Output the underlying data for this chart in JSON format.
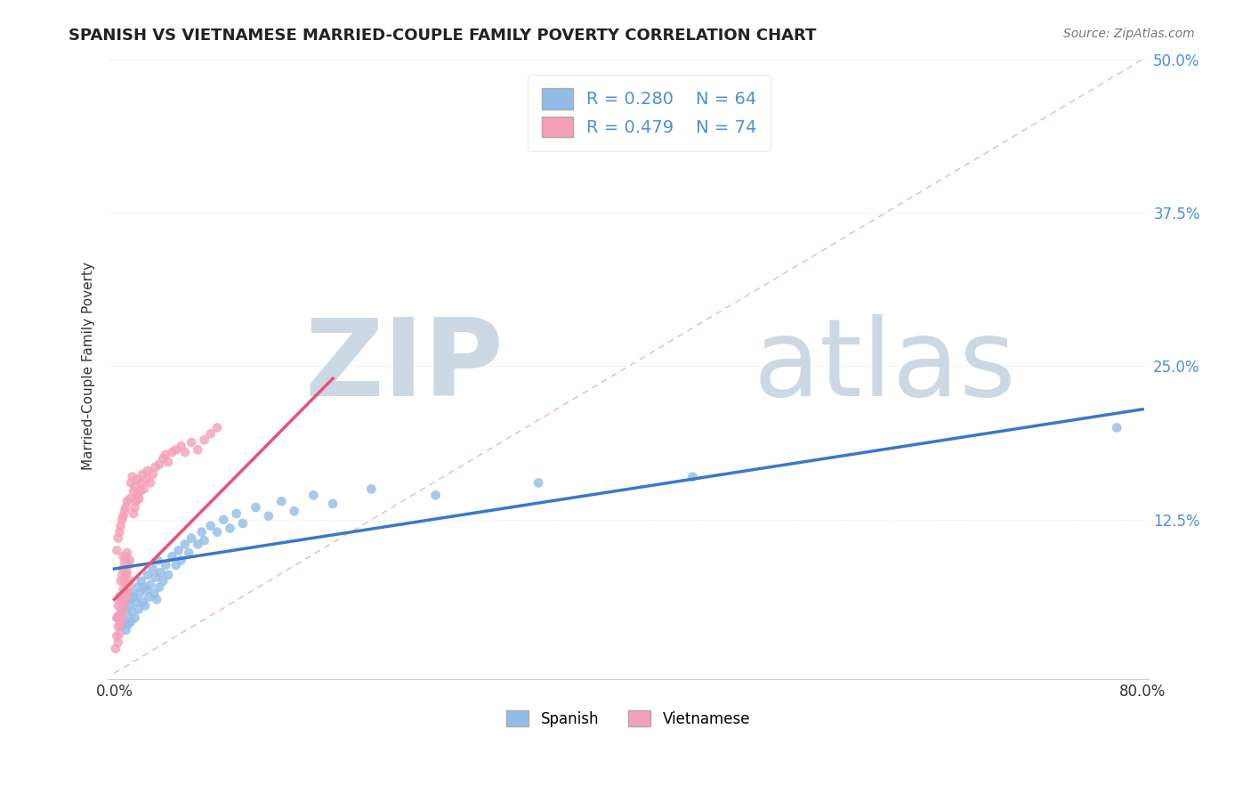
{
  "title": "SPANISH VS VIETNAMESE MARRIED-COUPLE FAMILY POVERTY CORRELATION CHART",
  "source": "Source: ZipAtlas.com",
  "ylabel": "Married-Couple Family Poverty",
  "xlim": [
    -0.005,
    0.805
  ],
  "ylim": [
    -0.005,
    0.505
  ],
  "xticks": [
    0.0,
    0.2,
    0.4,
    0.6,
    0.8
  ],
  "yticks": [
    0.0,
    0.125,
    0.25,
    0.375,
    0.5
  ],
  "yticklabels": [
    "",
    "12.5%",
    "25.0%",
    "37.5%",
    "50.0%"
  ],
  "spanish_color": "#92bce8",
  "vietnamese_color": "#f4a0b8",
  "spanish_R": 0.28,
  "spanish_N": 64,
  "vietnamese_R": 0.479,
  "vietnamese_N": 74,
  "watermark_zip": "ZIP",
  "watermark_atlas": "atlas",
  "watermark_color_zip": "#c8d8e8",
  "watermark_color_atlas": "#c8d8e8",
  "diagonal_color": "#e0c8c8",
  "spanish_line_color": "#3a78c9",
  "vietnamese_line_color": "#e8507a",
  "background_color": "#ffffff",
  "grid_color": "#e8e8e8",
  "tick_color": "#4a90d9",
  "legend_box_color": "#e8e8e8",
  "spanish_points": [
    [
      0.003,
      0.045
    ],
    [
      0.005,
      0.038
    ],
    [
      0.006,
      0.052
    ],
    [
      0.007,
      0.042
    ],
    [
      0.008,
      0.055
    ],
    [
      0.009,
      0.035
    ],
    [
      0.01,
      0.048
    ],
    [
      0.01,
      0.06
    ],
    [
      0.011,
      0.04
    ],
    [
      0.012,
      0.055
    ],
    [
      0.013,
      0.042
    ],
    [
      0.013,
      0.065
    ],
    [
      0.014,
      0.05
    ],
    [
      0.015,
      0.062
    ],
    [
      0.016,
      0.045
    ],
    [
      0.017,
      0.058
    ],
    [
      0.018,
      0.07
    ],
    [
      0.019,
      0.052
    ],
    [
      0.02,
      0.065
    ],
    [
      0.021,
      0.075
    ],
    [
      0.022,
      0.058
    ],
    [
      0.023,
      0.07
    ],
    [
      0.024,
      0.055
    ],
    [
      0.025,
      0.068
    ],
    [
      0.026,
      0.08
    ],
    [
      0.027,
      0.062
    ],
    [
      0.028,
      0.072
    ],
    [
      0.03,
      0.085
    ],
    [
      0.031,
      0.065
    ],
    [
      0.032,
      0.078
    ],
    [
      0.033,
      0.06
    ],
    [
      0.034,
      0.092
    ],
    [
      0.035,
      0.07
    ],
    [
      0.036,
      0.082
    ],
    [
      0.038,
      0.075
    ],
    [
      0.04,
      0.088
    ],
    [
      0.042,
      0.08
    ],
    [
      0.045,
      0.095
    ],
    [
      0.048,
      0.088
    ],
    [
      0.05,
      0.1
    ],
    [
      0.052,
      0.092
    ],
    [
      0.055,
      0.105
    ],
    [
      0.058,
      0.098
    ],
    [
      0.06,
      0.11
    ],
    [
      0.065,
      0.105
    ],
    [
      0.068,
      0.115
    ],
    [
      0.07,
      0.108
    ],
    [
      0.075,
      0.12
    ],
    [
      0.08,
      0.115
    ],
    [
      0.085,
      0.125
    ],
    [
      0.09,
      0.118
    ],
    [
      0.095,
      0.13
    ],
    [
      0.1,
      0.122
    ],
    [
      0.11,
      0.135
    ],
    [
      0.12,
      0.128
    ],
    [
      0.13,
      0.14
    ],
    [
      0.14,
      0.132
    ],
    [
      0.155,
      0.145
    ],
    [
      0.17,
      0.138
    ],
    [
      0.2,
      0.15
    ],
    [
      0.25,
      0.145
    ],
    [
      0.33,
      0.155
    ],
    [
      0.45,
      0.16
    ],
    [
      0.78,
      0.2
    ]
  ],
  "vietnamese_points": [
    [
      0.001,
      0.02
    ],
    [
      0.002,
      0.03
    ],
    [
      0.002,
      0.045
    ],
    [
      0.003,
      0.025
    ],
    [
      0.003,
      0.038
    ],
    [
      0.003,
      0.055
    ],
    [
      0.004,
      0.032
    ],
    [
      0.004,
      0.048
    ],
    [
      0.004,
      0.062
    ],
    [
      0.005,
      0.04
    ],
    [
      0.005,
      0.058
    ],
    [
      0.005,
      0.075
    ],
    [
      0.006,
      0.045
    ],
    [
      0.006,
      0.062
    ],
    [
      0.006,
      0.08
    ],
    [
      0.007,
      0.052
    ],
    [
      0.007,
      0.068
    ],
    [
      0.007,
      0.085
    ],
    [
      0.007,
      0.095
    ],
    [
      0.008,
      0.058
    ],
    [
      0.008,
      0.075
    ],
    [
      0.008,
      0.09
    ],
    [
      0.009,
      0.062
    ],
    [
      0.009,
      0.08
    ],
    [
      0.009,
      0.095
    ],
    [
      0.01,
      0.065
    ],
    [
      0.01,
      0.082
    ],
    [
      0.01,
      0.098
    ],
    [
      0.011,
      0.07
    ],
    [
      0.011,
      0.088
    ],
    [
      0.012,
      0.075
    ],
    [
      0.012,
      0.092
    ],
    [
      0.013,
      0.155
    ],
    [
      0.014,
      0.16
    ],
    [
      0.015,
      0.13
    ],
    [
      0.015,
      0.148
    ],
    [
      0.016,
      0.135
    ],
    [
      0.016,
      0.152
    ],
    [
      0.017,
      0.14
    ],
    [
      0.018,
      0.145
    ],
    [
      0.018,
      0.158
    ],
    [
      0.019,
      0.142
    ],
    [
      0.02,
      0.148
    ],
    [
      0.021,
      0.155
    ],
    [
      0.022,
      0.162
    ],
    [
      0.023,
      0.15
    ],
    [
      0.025,
      0.158
    ],
    [
      0.026,
      0.165
    ],
    [
      0.028,
      0.155
    ],
    [
      0.03,
      0.162
    ],
    [
      0.032,
      0.168
    ],
    [
      0.035,
      0.17
    ],
    [
      0.038,
      0.175
    ],
    [
      0.04,
      0.178
    ],
    [
      0.042,
      0.172
    ],
    [
      0.045,
      0.18
    ],
    [
      0.048,
      0.182
    ],
    [
      0.052,
      0.185
    ],
    [
      0.055,
      0.18
    ],
    [
      0.06,
      0.188
    ],
    [
      0.065,
      0.182
    ],
    [
      0.07,
      0.19
    ],
    [
      0.075,
      0.195
    ],
    [
      0.08,
      0.2
    ],
    [
      0.002,
      0.1
    ],
    [
      0.003,
      0.11
    ],
    [
      0.004,
      0.115
    ],
    [
      0.005,
      0.12
    ],
    [
      0.006,
      0.125
    ],
    [
      0.007,
      0.128
    ],
    [
      0.008,
      0.132
    ],
    [
      0.009,
      0.135
    ],
    [
      0.01,
      0.14
    ],
    [
      0.012,
      0.142
    ]
  ]
}
